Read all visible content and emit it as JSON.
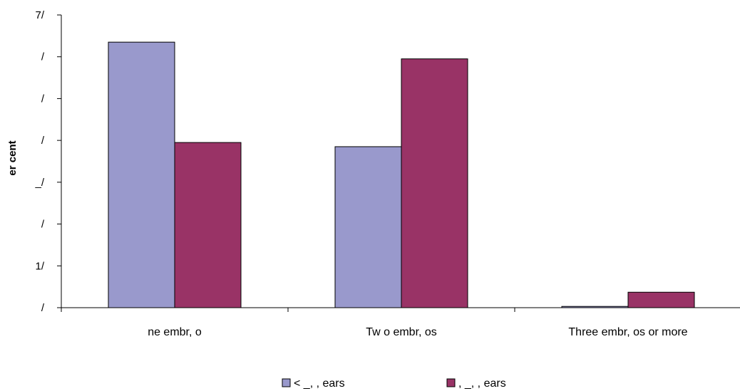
{
  "chart_data": {
    "type": "bar",
    "ylabel": "er cent",
    "xlabel": "",
    "ylim": [
      0,
      70
    ],
    "ytick_values": [
      0,
      10,
      20,
      30,
      40,
      50,
      60,
      70
    ],
    "ytick_labels": [
      "/",
      "1/",
      "/",
      "_/",
      "/",
      "/",
      "/",
      "7/"
    ],
    "categories": [
      "ne embr, o",
      "Tw o embr, os",
      "Three embr, os or more"
    ],
    "series": [
      {
        "name": "< _, , ears",
        "color": "#9999cc",
        "values": [
          63.5,
          38.5,
          0.3
        ]
      },
      {
        "name": ", _, , ears",
        "color": "#993366",
        "values": [
          39.5,
          59.5,
          3.7
        ]
      }
    ],
    "grid": false,
    "legend_placement": "bottom"
  }
}
